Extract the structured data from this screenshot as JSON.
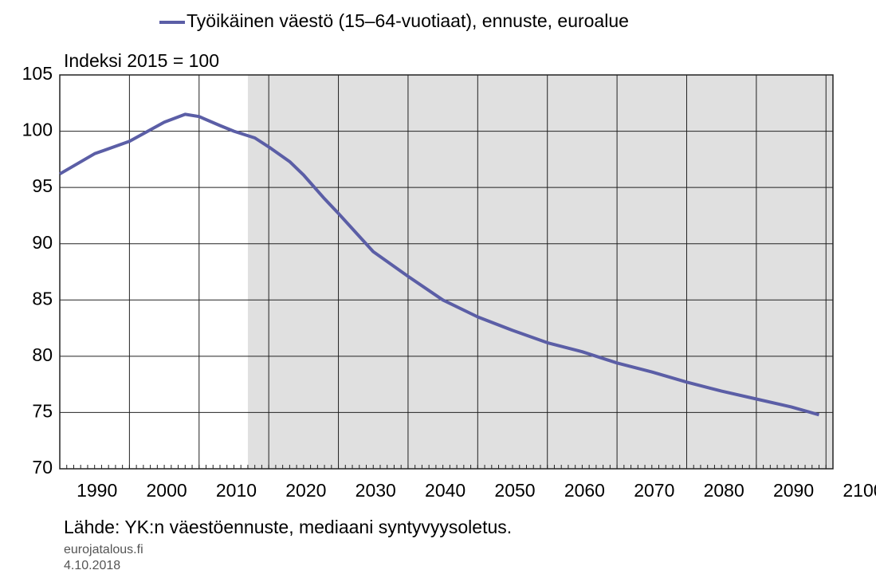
{
  "chart_data": {
    "type": "line",
    "y_label": "Indeksi 2015 = 100",
    "source": "Lähde: YK:n väestöennuste, mediaani syntyvyysoletus.",
    "site": "eurojatalous.fi",
    "date": "4.10.2018",
    "x": [
      1990,
      1995,
      2000,
      2005,
      2008,
      2010,
      2013,
      2015,
      2018,
      2020,
      2023,
      2025,
      2028,
      2030,
      2035,
      2040,
      2045,
      2050,
      2055,
      2060,
      2065,
      2070,
      2075,
      2080,
      2085,
      2090,
      2095,
      2099
    ],
    "series": [
      {
        "name": "Työikäinen väestö (15–64-vuotiaat), ennuste, euroalue",
        "color": "#5b5ea6",
        "values": [
          96.2,
          98.0,
          99.1,
          100.8,
          101.5,
          101.3,
          100.5,
          100.0,
          99.4,
          98.6,
          97.3,
          96.1,
          94.0,
          92.7,
          89.3,
          87.1,
          85.0,
          83.5,
          82.3,
          81.2,
          80.4,
          79.4,
          78.6,
          77.7,
          76.9,
          76.2,
          75.5,
          74.8
        ]
      }
    ],
    "forecast_shade": [
      2017,
      2101
    ],
    "xlim": [
      1990,
      2101
    ],
    "xticks": [
      1990,
      2000,
      2010,
      2020,
      2030,
      2040,
      2050,
      2060,
      2070,
      2080,
      2090,
      2100
    ],
    "ylim": [
      70,
      105
    ],
    "yticks": [
      70,
      75,
      80,
      85,
      90,
      95,
      100,
      105
    ],
    "grid": true
  }
}
